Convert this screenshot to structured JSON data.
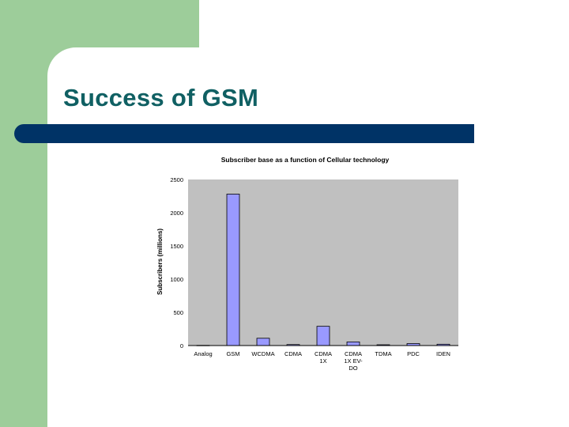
{
  "slide": {
    "title": "Success of GSM"
  },
  "colors": {
    "left_panel": "#9dcd9a",
    "title_text": "#106063",
    "title_bar": "#003366",
    "plot_background": "#c0c0c0",
    "bar_fill": "#9999ff"
  },
  "chart_data": {
    "type": "bar",
    "title": "Subscriber base as a function of Cellular technology",
    "xlabel": "",
    "ylabel": "Subscribers (millions)",
    "ylim": [
      0,
      2500
    ],
    "yticks": [
      0,
      500,
      1000,
      1500,
      2000,
      2500
    ],
    "grid": false,
    "legend": "none",
    "categories": [
      [
        "Analog"
      ],
      [
        "GSM"
      ],
      [
        "WCDMA"
      ],
      [
        "CDMA"
      ],
      [
        "CDMA",
        "1X"
      ],
      [
        "CDMA",
        "1X EV-",
        "DO"
      ],
      [
        "TDMA"
      ],
      [
        "PDC"
      ],
      [
        "IDEN"
      ]
    ],
    "values": [
      3,
      2280,
      110,
      15,
      290,
      55,
      12,
      30,
      20
    ]
  }
}
